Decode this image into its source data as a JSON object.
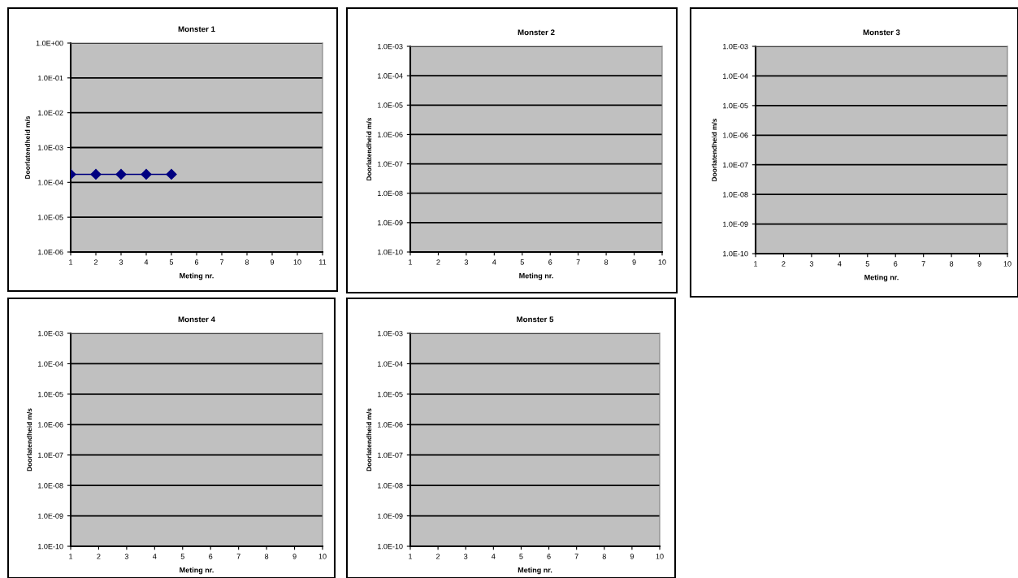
{
  "chart_data": [
    {
      "type": "line",
      "title": "Monster 1",
      "xlabel": "Meting nr.",
      "ylabel": "Doorlatendheid m/s",
      "log": "y",
      "grid": "y",
      "marker": "diamond",
      "line_style": "solid",
      "x": [
        1,
        2,
        3,
        4,
        5
      ],
      "series": [
        {
          "color": "#000080",
          "values": [
            0.00017,
            0.00017,
            0.00017,
            0.00017,
            0.00017
          ]
        }
      ],
      "xlim": [
        1,
        11
      ],
      "xticks": [
        1,
        2,
        3,
        4,
        5,
        6,
        7,
        8,
        9,
        10,
        11
      ],
      "ylim": [
        1e-06,
        1
      ],
      "yticks": [
        {
          "value": 1e-06,
          "label": "1.0E-06"
        },
        {
          "value": 1e-05,
          "label": "1.0E-05"
        },
        {
          "value": 0.0001,
          "label": "1.0E-04"
        },
        {
          "value": 0.001,
          "label": "1.0E-03"
        },
        {
          "value": 0.01,
          "label": "1.0E-02"
        },
        {
          "value": 0.1,
          "label": "1.0E-01"
        },
        {
          "value": 1,
          "label": "1.0E+00"
        }
      ]
    },
    {
      "type": "line",
      "title": "Monster 2",
      "xlabel": "Meting nr.",
      "ylabel": "Doorlatendheid m/s",
      "log": "y",
      "grid": "y",
      "xlim": [
        1,
        10
      ],
      "xticks": [
        1,
        2,
        3,
        4,
        5,
        6,
        7,
        8,
        9,
        10
      ],
      "ylim": [
        1e-10,
        0.001
      ],
      "yticks": [
        {
          "value": 1e-10,
          "label": "1.0E-10"
        },
        {
          "value": 1e-09,
          "label": "1.0E-09"
        },
        {
          "value": 1e-08,
          "label": "1.0E-08"
        },
        {
          "value": 1e-07,
          "label": "1.0E-07"
        },
        {
          "value": 1e-06,
          "label": "1.0E-06"
        },
        {
          "value": 1e-05,
          "label": "1.0E-05"
        },
        {
          "value": 0.0001,
          "label": "1.0E-04"
        },
        {
          "value": 0.001,
          "label": "1.0E-03"
        }
      ]
    },
    {
      "type": "line",
      "title": "Monster 3",
      "xlabel": "Meting nr.",
      "ylabel": "Doorlatendheid m/s",
      "log": "y",
      "grid": "y",
      "xlim": [
        1,
        10
      ],
      "xticks": [
        1,
        2,
        3,
        4,
        5,
        6,
        7,
        8,
        9,
        10
      ],
      "ylim": [
        1e-10,
        0.001
      ],
      "yticks": [
        {
          "value": 1e-10,
          "label": "1.0E-10"
        },
        {
          "value": 1e-09,
          "label": "1.0E-09"
        },
        {
          "value": 1e-08,
          "label": "1.0E-08"
        },
        {
          "value": 1e-07,
          "label": "1.0E-07"
        },
        {
          "value": 1e-06,
          "label": "1.0E-06"
        },
        {
          "value": 1e-05,
          "label": "1.0E-05"
        },
        {
          "value": 0.0001,
          "label": "1.0E-04"
        },
        {
          "value": 0.001,
          "label": "1.0E-03"
        }
      ]
    },
    {
      "type": "line",
      "title": "Monster 4",
      "xlabel": "Meting nr.",
      "ylabel": "Doorlatendheid m/s",
      "log": "y",
      "grid": "y",
      "xlim": [
        1,
        10
      ],
      "xticks": [
        1,
        2,
        3,
        4,
        5,
        6,
        7,
        8,
        9,
        10
      ],
      "ylim": [
        1e-10,
        0.001
      ],
      "yticks": [
        {
          "value": 1e-10,
          "label": "1.0E-10"
        },
        {
          "value": 1e-09,
          "label": "1.0E-09"
        },
        {
          "value": 1e-08,
          "label": "1.0E-08"
        },
        {
          "value": 1e-07,
          "label": "1.0E-07"
        },
        {
          "value": 1e-06,
          "label": "1.0E-06"
        },
        {
          "value": 1e-05,
          "label": "1.0E-05"
        },
        {
          "value": 0.0001,
          "label": "1.0E-04"
        },
        {
          "value": 0.001,
          "label": "1.0E-03"
        }
      ]
    },
    {
      "type": "line",
      "title": "Monster 5",
      "xlabel": "Meting nr.",
      "ylabel": "Doorlatendheid m/s",
      "log": "y",
      "grid": "y",
      "xlim": [
        1,
        10
      ],
      "xticks": [
        1,
        2,
        3,
        4,
        5,
        6,
        7,
        8,
        9,
        10
      ],
      "ylim": [
        1e-10,
        0.001
      ],
      "yticks": [
        {
          "value": 1e-10,
          "label": "1.0E-10"
        },
        {
          "value": 1e-09,
          "label": "1.0E-09"
        },
        {
          "value": 1e-08,
          "label": "1.0E-08"
        },
        {
          "value": 1e-07,
          "label": "1.0E-07"
        },
        {
          "value": 1e-06,
          "label": "1.0E-06"
        },
        {
          "value": 1e-05,
          "label": "1.0E-05"
        },
        {
          "value": 0.0001,
          "label": "1.0E-04"
        },
        {
          "value": 0.001,
          "label": "1.0E-03"
        }
      ]
    }
  ]
}
